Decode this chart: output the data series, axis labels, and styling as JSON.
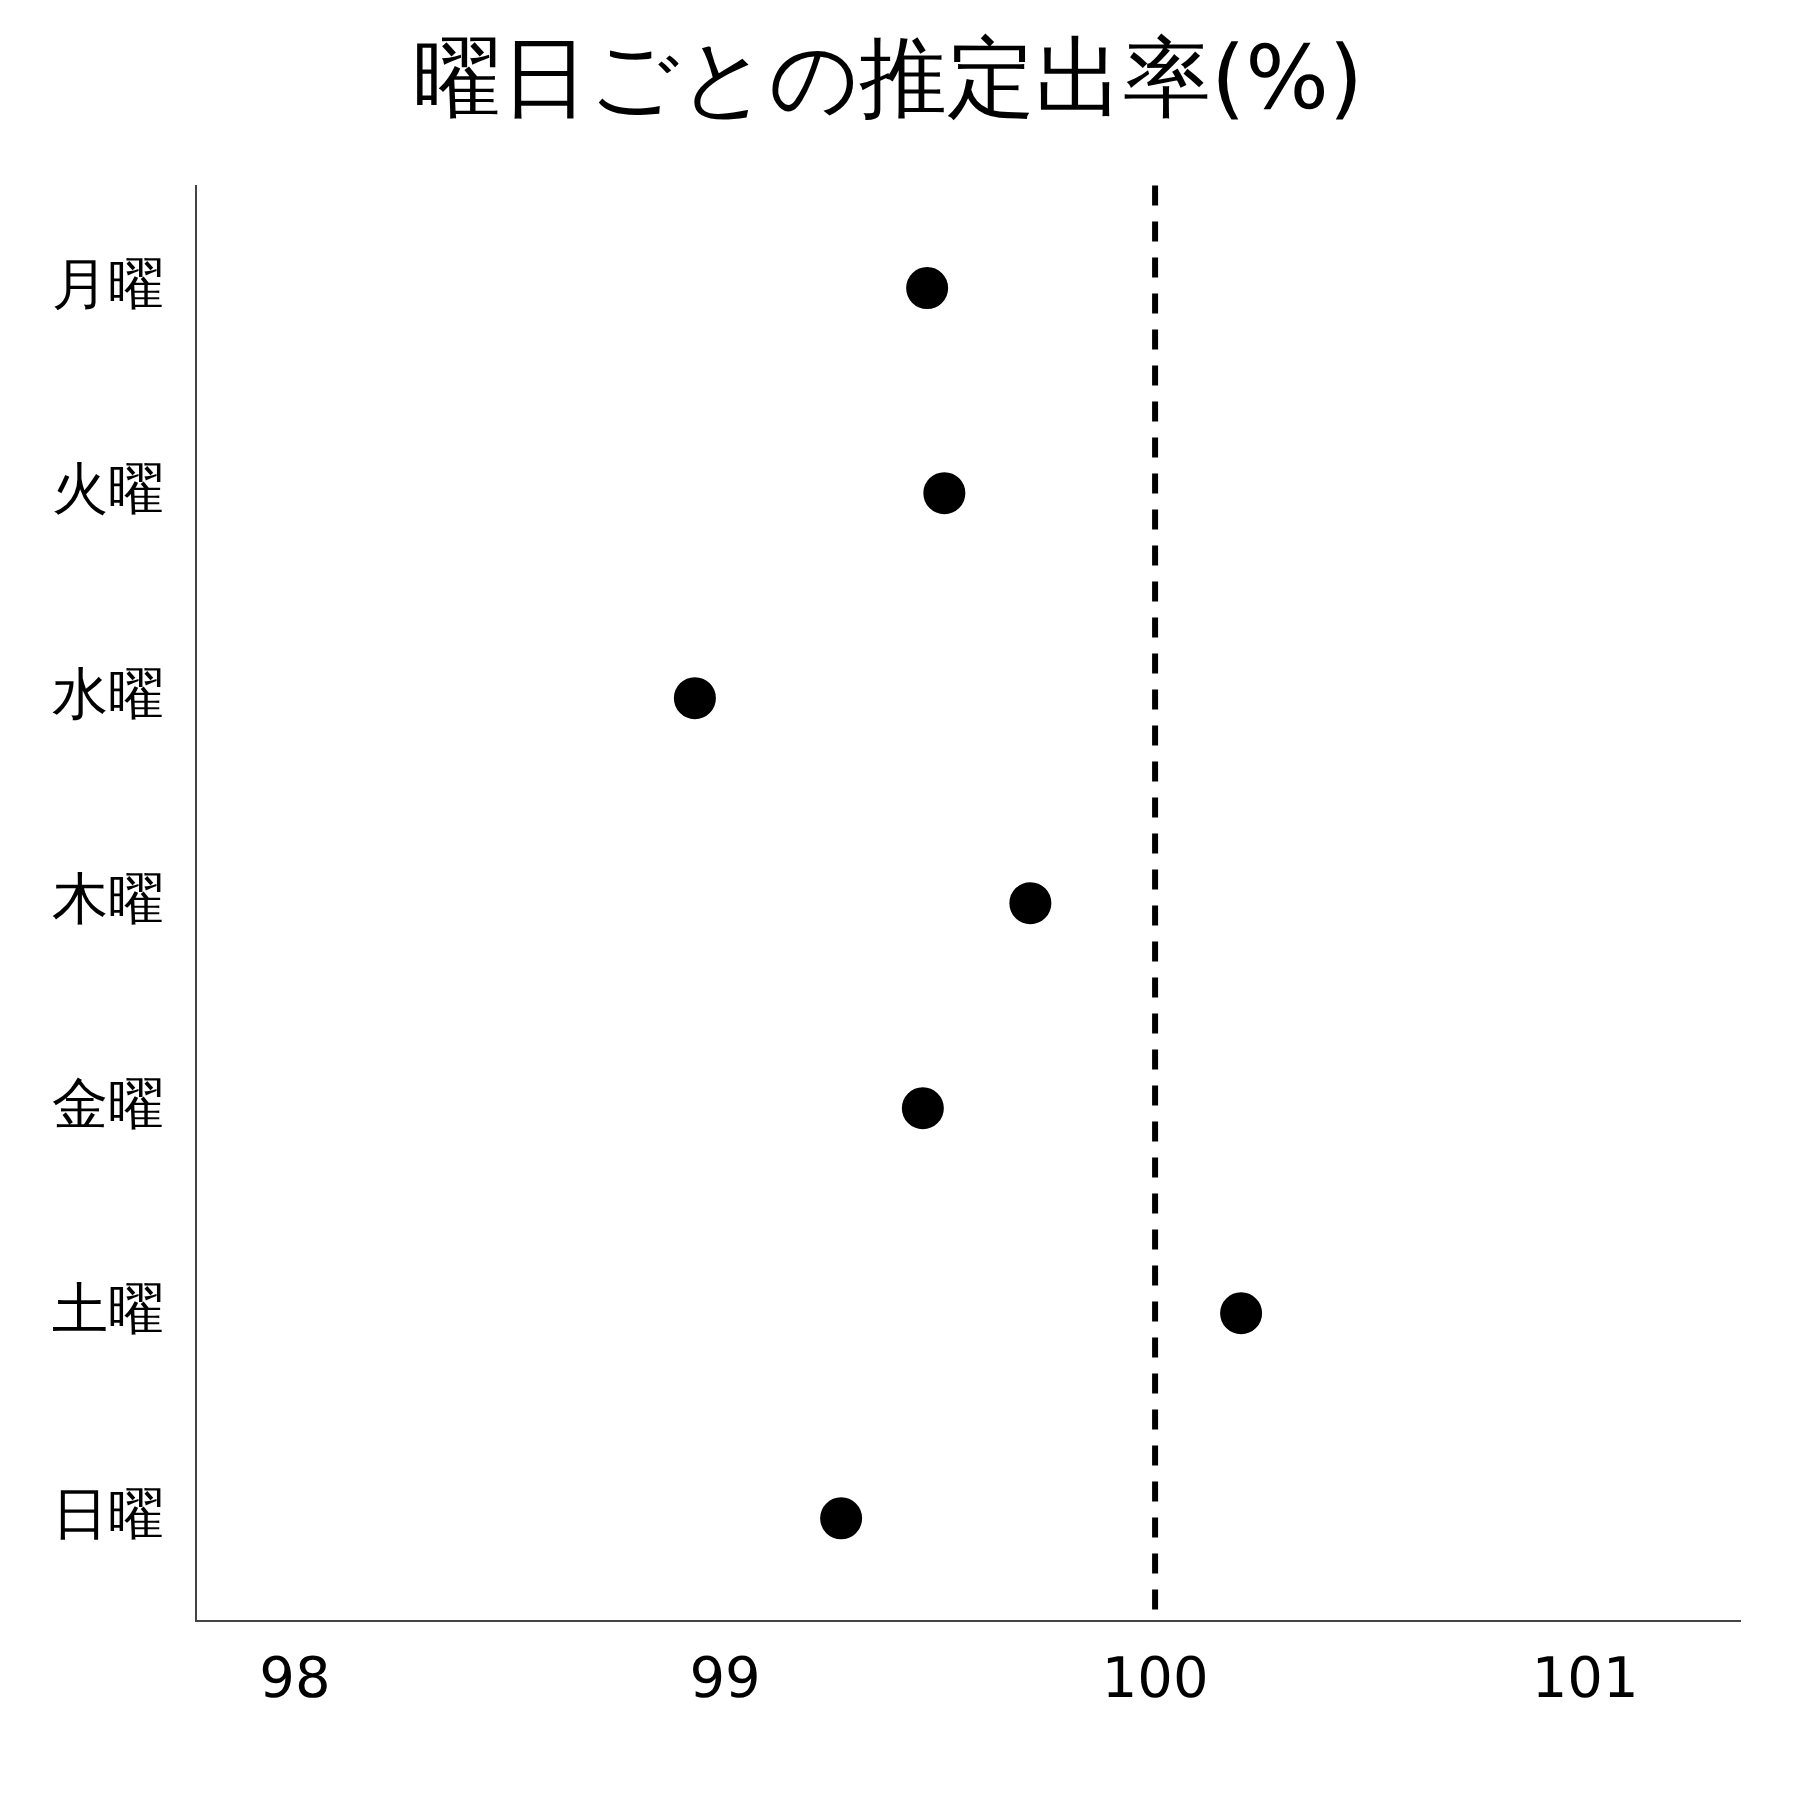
{
  "chart_data": {
    "type": "scatter",
    "title": "曜日ごとの推定出率(%)",
    "orientation": "horizontal",
    "categories": [
      "月曜",
      "火曜",
      "水曜",
      "木曜",
      "金曜",
      "土曜",
      "日曜"
    ],
    "series": [
      {
        "color": "#000000",
        "values": [
          99.47,
          99.51,
          98.93,
          99.71,
          99.46,
          100.2,
          99.27
        ]
      }
    ],
    "xlim": [
      97.77,
      101.36
    ],
    "xticks": [
      98,
      99,
      100,
      101
    ],
    "grid": false,
    "legend": false,
    "marker": "circle",
    "ref_lines": [
      {
        "axis": "x",
        "value": 100,
        "color": "#000000",
        "line_style": "dashed"
      }
    ]
  }
}
